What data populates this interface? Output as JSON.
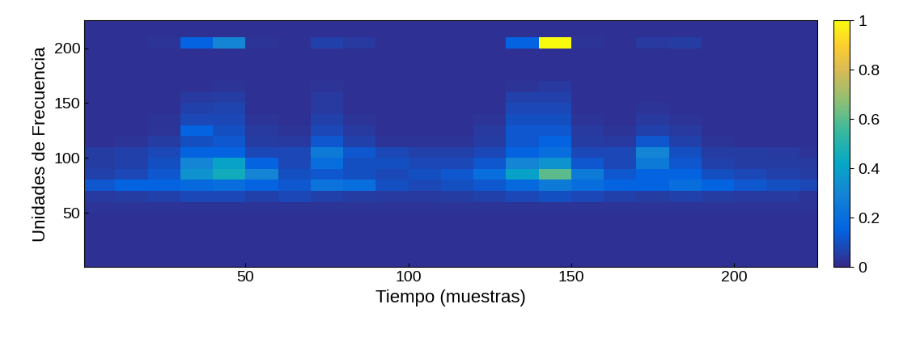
{
  "chart_data": {
    "type": "heatmap",
    "xlabel": "Tiempo (muestras)",
    "ylabel": "Unidades de Frecuencia",
    "x": [
      5,
      15,
      25,
      35,
      45,
      55,
      65,
      75,
      85,
      95,
      105,
      115,
      125,
      135,
      145,
      155,
      165,
      175,
      185,
      195,
      205,
      215,
      225
    ],
    "y": [
      5,
      15,
      25,
      35,
      45,
      55,
      65,
      75,
      85,
      95,
      105,
      115,
      125,
      135,
      145,
      155,
      165,
      175,
      185,
      195,
      205,
      215,
      225
    ],
    "cells": [
      [
        0.02,
        0.02,
        0.02,
        0.02,
        0.02,
        0.02,
        0.02,
        0.02,
        0.02,
        0.02,
        0.02,
        0.02,
        0.02,
        0.02,
        0.02,
        0.02,
        0.02,
        0.02,
        0.02,
        0.02,
        0.02,
        0.02,
        0.02
      ],
      [
        0.02,
        0.02,
        0.02,
        0.02,
        0.02,
        0.02,
        0.02,
        0.02,
        0.02,
        0.02,
        0.02,
        0.02,
        0.02,
        0.02,
        0.02,
        0.02,
        0.02,
        0.02,
        0.02,
        0.02,
        0.02,
        0.02,
        0.02
      ],
      [
        0.02,
        0.02,
        0.02,
        0.02,
        0.02,
        0.02,
        0.02,
        0.02,
        0.02,
        0.02,
        0.02,
        0.02,
        0.02,
        0.02,
        0.02,
        0.02,
        0.02,
        0.02,
        0.02,
        0.02,
        0.02,
        0.02,
        0.02
      ],
      [
        0.02,
        0.02,
        0.02,
        0.02,
        0.02,
        0.02,
        0.02,
        0.02,
        0.02,
        0.02,
        0.02,
        0.02,
        0.02,
        0.02,
        0.02,
        0.02,
        0.02,
        0.02,
        0.02,
        0.02,
        0.02,
        0.02,
        0.02
      ],
      [
        0.02,
        0.02,
        0.02,
        0.02,
        0.02,
        0.02,
        0.02,
        0.02,
        0.02,
        0.02,
        0.02,
        0.02,
        0.02,
        0.02,
        0.02,
        0.02,
        0.02,
        0.02,
        0.02,
        0.02,
        0.02,
        0.02,
        0.02
      ],
      [
        0.03,
        0.03,
        0.03,
        0.03,
        0.03,
        0.03,
        0.03,
        0.03,
        0.03,
        0.03,
        0.03,
        0.03,
        0.03,
        0.03,
        0.03,
        0.03,
        0.03,
        0.03,
        0.03,
        0.03,
        0.03,
        0.03,
        0.03
      ],
      [
        0.04,
        0.05,
        0.06,
        0.08,
        0.08,
        0.06,
        0.08,
        0.06,
        0.05,
        0.04,
        0.04,
        0.05,
        0.06,
        0.08,
        0.1,
        0.08,
        0.06,
        0.05,
        0.06,
        0.05,
        0.04,
        0.04,
        0.03
      ],
      [
        0.12,
        0.15,
        0.15,
        0.18,
        0.2,
        0.15,
        0.12,
        0.22,
        0.2,
        0.1,
        0.08,
        0.1,
        0.12,
        0.18,
        0.25,
        0.2,
        0.15,
        0.15,
        0.2,
        0.15,
        0.12,
        0.1,
        0.08
      ],
      [
        0.06,
        0.08,
        0.12,
        0.35,
        0.45,
        0.3,
        0.1,
        0.12,
        0.1,
        0.08,
        0.1,
        0.12,
        0.2,
        0.4,
        0.6,
        0.25,
        0.12,
        0.15,
        0.15,
        0.1,
        0.08,
        0.06,
        0.05
      ],
      [
        0.05,
        0.06,
        0.1,
        0.3,
        0.4,
        0.15,
        0.08,
        0.2,
        0.1,
        0.1,
        0.08,
        0.08,
        0.12,
        0.3,
        0.35,
        0.12,
        0.08,
        0.25,
        0.12,
        0.06,
        0.05,
        0.05,
        0.04
      ],
      [
        0.05,
        0.06,
        0.08,
        0.15,
        0.15,
        0.08,
        0.08,
        0.25,
        0.12,
        0.08,
        0.06,
        0.06,
        0.08,
        0.15,
        0.2,
        0.08,
        0.08,
        0.3,
        0.1,
        0.05,
        0.05,
        0.04,
        0.03
      ],
      [
        0.02,
        0.03,
        0.05,
        0.1,
        0.12,
        0.05,
        0.04,
        0.12,
        0.06,
        0.03,
        0.03,
        0.03,
        0.05,
        0.12,
        0.15,
        0.05,
        0.04,
        0.12,
        0.06,
        0.03,
        0.02,
        0.02,
        0.02
      ],
      [
        0.02,
        0.02,
        0.03,
        0.15,
        0.1,
        0.04,
        0.03,
        0.08,
        0.04,
        0.02,
        0.02,
        0.02,
        0.04,
        0.12,
        0.12,
        0.04,
        0.03,
        0.06,
        0.04,
        0.02,
        0.02,
        0.02,
        0.02
      ],
      [
        0.02,
        0.02,
        0.03,
        0.08,
        0.08,
        0.03,
        0.02,
        0.06,
        0.03,
        0.02,
        0.02,
        0.02,
        0.03,
        0.1,
        0.1,
        0.03,
        0.02,
        0.04,
        0.03,
        0.02,
        0.02,
        0.02,
        0.02
      ],
      [
        0.02,
        0.02,
        0.02,
        0.06,
        0.07,
        0.02,
        0.02,
        0.04,
        0.02,
        0.02,
        0.02,
        0.02,
        0.02,
        0.08,
        0.08,
        0.02,
        0.02,
        0.03,
        0.02,
        0.02,
        0.02,
        0.02,
        0.02
      ],
      [
        0.02,
        0.02,
        0.02,
        0.04,
        0.05,
        0.02,
        0.02,
        0.04,
        0.02,
        0.02,
        0.02,
        0.02,
        0.02,
        0.06,
        0.06,
        0.02,
        0.02,
        0.02,
        0.02,
        0.02,
        0.02,
        0.02,
        0.02
      ],
      [
        0.02,
        0.02,
        0.02,
        0.02,
        0.03,
        0.02,
        0.02,
        0.03,
        0.02,
        0.02,
        0.02,
        0.02,
        0.02,
        0.03,
        0.04,
        0.02,
        0.02,
        0.02,
        0.02,
        0.02,
        0.02,
        0.02,
        0.02
      ],
      [
        0.02,
        0.02,
        0.02,
        0.02,
        0.02,
        0.02,
        0.02,
        0.02,
        0.02,
        0.02,
        0.02,
        0.02,
        0.02,
        0.02,
        0.02,
        0.02,
        0.02,
        0.02,
        0.02,
        0.02,
        0.02,
        0.02,
        0.02
      ],
      [
        0.02,
        0.02,
        0.02,
        0.02,
        0.02,
        0.02,
        0.02,
        0.02,
        0.02,
        0.02,
        0.02,
        0.02,
        0.02,
        0.02,
        0.02,
        0.02,
        0.02,
        0.02,
        0.02,
        0.02,
        0.02,
        0.02,
        0.02
      ],
      [
        0.02,
        0.02,
        0.02,
        0.02,
        0.02,
        0.02,
        0.02,
        0.02,
        0.02,
        0.02,
        0.02,
        0.02,
        0.02,
        0.02,
        0.02,
        0.02,
        0.02,
        0.02,
        0.02,
        0.02,
        0.02,
        0.02,
        0.02
      ],
      [
        0.02,
        0.02,
        0.03,
        0.15,
        0.3,
        0.03,
        0.02,
        0.06,
        0.04,
        0.02,
        0.02,
        0.02,
        0.02,
        0.15,
        1,
        0.03,
        0.02,
        0.04,
        0.05,
        0.02,
        0.02,
        0.02,
        0.02
      ],
      [
        0.02,
        0.02,
        0.02,
        0.02,
        0.02,
        0.02,
        0.02,
        0.02,
        0.02,
        0.02,
        0.02,
        0.02,
        0.02,
        0.02,
        0.02,
        0.02,
        0.02,
        0.02,
        0.02,
        0.02,
        0.02,
        0.02,
        0.02
      ],
      [
        0.02,
        0.02,
        0.02,
        0.02,
        0.02,
        0.02,
        0.02,
        0.02,
        0.02,
        0.02,
        0.02,
        0.02,
        0.02,
        0.02,
        0.02,
        0.02,
        0.02,
        0.02,
        0.02,
        0.02,
        0.02,
        0.02,
        0.02
      ]
    ],
    "xlim": [
      0.5,
      225.5
    ],
    "ylim": [
      0.5,
      225.5
    ],
    "xticks": [
      50,
      100,
      150,
      200
    ],
    "yticks": [
      50,
      100,
      150,
      200
    ],
    "colorbar_lim": [
      0,
      1
    ],
    "colorbar_ticks": [
      0,
      0.2,
      0.4,
      0.6,
      0.8,
      1
    ],
    "grid": false
  }
}
